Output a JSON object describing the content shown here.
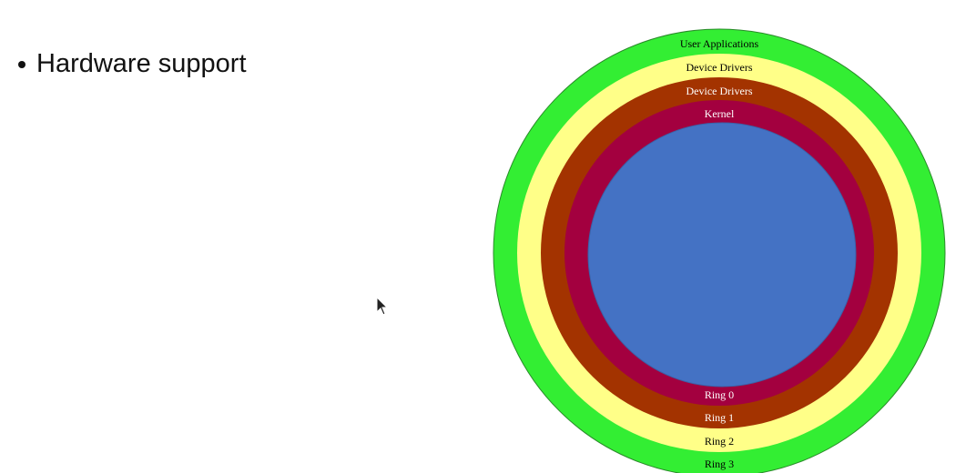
{
  "slide": {
    "bullets": [
      {
        "text": "Hardware support"
      }
    ]
  },
  "diagram": {
    "rings": [
      {
        "name": "Ring 3",
        "role": "User Applications",
        "color": "#33ee33",
        "text_color": "#000000"
      },
      {
        "name": "Ring 2",
        "role": "Device Drivers",
        "color": "#ffff88",
        "text_color": "#000000"
      },
      {
        "name": "Ring 1",
        "role": "Device Drivers",
        "color": "#a33300",
        "text_color": "#ffffff"
      },
      {
        "name": "Ring 0",
        "role": "Kernel",
        "color": "#a3003f",
        "text_color": "#ffffff"
      }
    ],
    "core_color": "#4472c4"
  }
}
